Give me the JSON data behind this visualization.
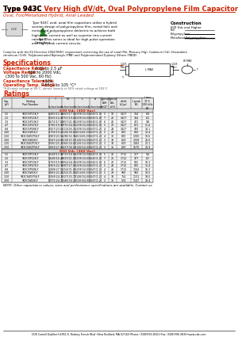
{
  "title_black": "Type 943C",
  "title_red": "Very High dV/dt, Oval Polypropylene Film Capacitors",
  "subtitle": "Oval, Foil/Metallized Hybrid, Axial Leaded",
  "description": "Type 943C oval, axial film capacitors utilize a hybrid section design of polypropylene film, metal foils and metallized polypropylene dielectric to achieve both high peak current as well as superior rms current ratings. This series is ideal for high pulse operation and high peak current circuits.",
  "construction_title": "Construction",
  "construction_sub": "600 Vdc and Higher",
  "construction_layers": [
    "Foil",
    "Polypropylene",
    "Metallized Polypropylene"
  ],
  "eu_text": "Complies with the EU Directive 2002/95/EC requirement restricting the use of Lead (Pb), Mercury (Hg), Cadmium (Cd), Hexavalent chromium (CrVI), Polybrominated Biphenyls (PBB) and Polybrominated Diphenyl Ethers (PBDE).",
  "spec_title": "Specifications",
  "spec_cap_label": "Capacitance Range:",
  "spec_cap_val": " 0.01 to 2.5 μF",
  "spec_volt_label": "Voltage Range:",
  "spec_volt_val": " 600 to 2000 Vdc,",
  "spec_volt_val2": "  (300 to 500 Vac, 60 Hz)",
  "spec_tol_label": "Capacitance Tolerance:",
  "spec_tol_val": " ±10%",
  "spec_temp_label": "Operating Temp. Range:",
  "spec_temp_val": " −55°C to 105 °C*",
  "spec_note": "*Full-rated voltage at 85°C, derate linearly to 50% rated voltage at 105°C",
  "ratings_title": "Ratings",
  "section_600v": "600 Vdc (300 Vac)",
  "rows_600v": [
    [
      ".15",
      "943C6P15K-F",
      "0.465(12.3)",
      "0.669(17.0)",
      "1.339(34.0)",
      "0.040(1.0)",
      "5",
      "19",
      "1427",
      "214",
      "8.9"
    ],
    [
      ".22",
      "943C6P22K-F",
      "0.565(14.3)",
      "0.750(19.0)",
      "1.339(34.0)",
      "0.040(1.0)",
      "7",
      "20",
      "1427",
      "314",
      "8.1"
    ],
    [
      ".33",
      "943C6P33K-F",
      "0.672(17.1)",
      "0.857(21.8)",
      "1.339(34.0)",
      "0.040(1.0)",
      "6",
      "22",
      "1427",
      "471",
      "9.8"
    ],
    [
      ".47",
      "943C6P47K-F",
      "0.785(19.9)",
      "0.970(24.6)",
      "1.339(34.0)",
      "0.040(1.0)",
      "5",
      "23",
      "1427",
      "671",
      "11.4"
    ],
    [
      ".68",
      "943C6P68K-F",
      "0.927(23.5)",
      "1.113(28.3)",
      "1.339(34.0)",
      "0.047(1.2)",
      "4",
      "24",
      "1427",
      "970",
      "14.1"
    ],
    [
      "1.00",
      "943C6W1K-F",
      "0.758(19.2)",
      "1.126(28.6)",
      "1.811(46.0)",
      "0.047(1.2)",
      "5",
      "29",
      "800",
      "800",
      "13.4"
    ],
    [
      "1.50",
      "943C6W1P5K-F",
      "0.909(23.5)",
      "1.296(32.9)",
      "1.811(46.0)",
      "0.047(1.2)",
      "4",
      "30",
      "800",
      "1200",
      "16.6"
    ],
    [
      "2.00",
      "943C6W2K-F",
      "0.947(24.0)",
      "1.319(33.5)",
      "2.126(54.0)",
      "0.047(1.2)",
      "3",
      "33",
      "629",
      "1258",
      "20.6"
    ],
    [
      "2.20",
      "943C6W2P2K-F",
      "0.990(25.2)",
      "1.366(34.6)",
      "2.126(54.0)",
      "0.047(1.2)",
      "3",
      "34",
      "629",
      "1382",
      "21.1"
    ],
    [
      "2.50",
      "943C6W2P5K-F",
      "1.063(27.0)",
      "1.437(36.5)",
      "2.126(54.0)",
      "0.047(1.2)",
      "3",
      "35",
      "629",
      "1570",
      "21.9"
    ]
  ],
  "section_850v": "850 Vdc (360 Vac)",
  "rows_850v": [
    [
      ".15",
      "943C8P15K-F",
      "0.548(13.9)",
      "0.733(18.6)",
      "1.339(34.0)",
      "0.040(1.0)",
      "5",
      "20",
      "1712",
      "257",
      "9.4"
    ],
    [
      ".22",
      "943C8P22K-F",
      "0.648(16.4)",
      "0.829(21.0)",
      "1.339(34.0)",
      "0.040(1.0)",
      "7",
      "21",
      "1712",
      "377",
      "8.7"
    ],
    [
      ".33",
      "943C8P33K-F",
      "0.769(19.5)",
      "0.954(24.2)",
      "1.339(34.0)",
      "0.040(1.0)",
      "6",
      "23",
      "1712",
      "565",
      "10.3"
    ],
    [
      ".47",
      "943C8P47K-F",
      "0.903(22.9)",
      "1.087(27.6)",
      "1.339(34.0)",
      "0.047(1.2)",
      "5",
      "24",
      "1712",
      "805",
      "12.4"
    ],
    [
      ".68",
      "943C8P68K-F",
      "1.068(27.1)",
      "1.254(31.8)",
      "1.339(34.0)",
      "0.047(1.2)",
      "4",
      "26",
      "1712",
      "1164",
      "15.3"
    ],
    [
      "1.00",
      "943C8W1K-F",
      "0.882(22.4)",
      "1.252(31.8)",
      "1.811(46.0)",
      "0.047(1.2)",
      "5",
      "29",
      "900",
      "900",
      "14.5"
    ],
    [
      "1.50",
      "943C8W1P5K-F",
      "0.958(24.3)",
      "1.327(33.7)",
      "2.126(54.0)",
      "0.047(1.2)",
      "4",
      "34",
      "754",
      "1131",
      "18.0"
    ],
    [
      "2.00",
      "943C8W2K-F",
      "0.972(24.7)",
      "1.346(34.2)",
      "2.526(64.0)",
      "0.047(1.2)",
      "3",
      "36",
      "574",
      "1147",
      "22.4"
    ]
  ],
  "note": "NOTE: Other capacitance values, sizes and performance specifications are available. Contact us.",
  "footer": "CDE Cornell Dubilier®4951 E. Rodney French Blvd •New Bedford, MA 02744•Phone: (508)996-8561•Fax: (508)996-3830•www.cde.com",
  "bg_color": "#ffffff",
  "red_color": "#cc2200",
  "table_header_bg": "#e8e8e8",
  "table_alt_bg": "#f5f5f5"
}
